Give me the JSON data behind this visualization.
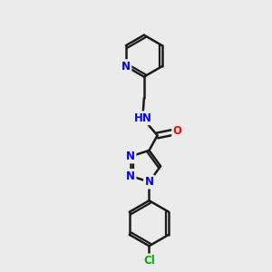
{
  "bg_color": "#ebebeb",
  "bond_color": "#1a1a1a",
  "bond_width": 1.8,
  "atom_colors": {
    "N": "#0000ff",
    "O": "#ff0000",
    "Cl": "#00aa00",
    "C": "#1a1a1a",
    "H": "#1a1a1a"
  },
  "font_size": 8.5,
  "fig_size": [
    3.0,
    3.0
  ],
  "dpi": 100,
  "xlim": [
    0,
    10
  ],
  "ylim": [
    0,
    10
  ]
}
